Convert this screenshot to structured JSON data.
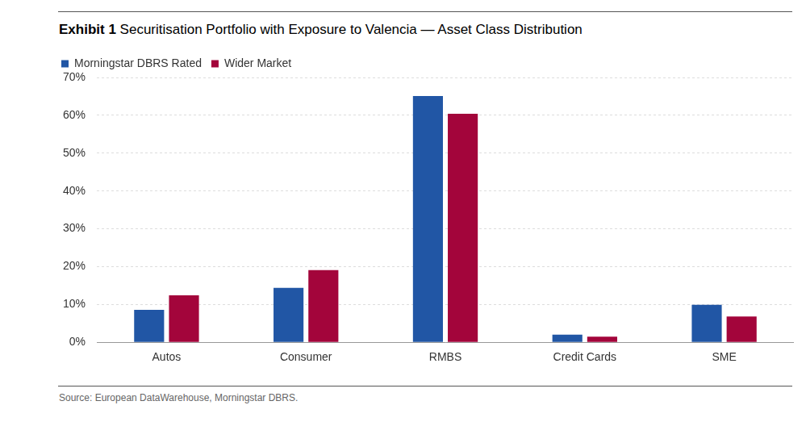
{
  "chart_data": {
    "type": "bar",
    "title": "Exhibit 1 Securitisation Portfolio with Exposure to Valencia — Asset Class Distribution",
    "source": "Source: European DataWarehouse, Morningstar DBRS.",
    "categories": [
      "Autos",
      "Consumer",
      "RMBS",
      "Credit Cards",
      "SME"
    ],
    "series": [
      {
        "name": "Morningstar DBRS Rated",
        "color": "#2156a5",
        "values": [
          8.6,
          14.4,
          65.1,
          2.0,
          9.9
        ]
      },
      {
        "name": "Wider Market",
        "color": "#a3053b",
        "values": [
          12.4,
          19.1,
          60.4,
          1.5,
          6.8
        ]
      }
    ],
    "ylim": [
      0,
      70
    ],
    "yticks": [
      {
        "value": 0,
        "label": "0%"
      },
      {
        "value": 10,
        "label": "10%"
      },
      {
        "value": 20,
        "label": "20%"
      },
      {
        "value": 30,
        "label": "30%"
      },
      {
        "value": 40,
        "label": "40%"
      },
      {
        "value": 50,
        "label": "50%"
      },
      {
        "value": 60,
        "label": "60%"
      },
      {
        "value": 70,
        "label": "70%"
      }
    ],
    "grid": true,
    "legend": "top-left"
  }
}
